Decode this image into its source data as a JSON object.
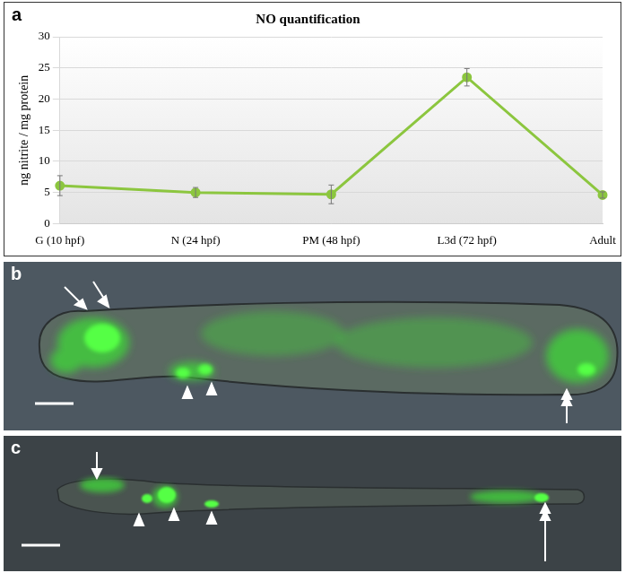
{
  "chart_data": {
    "type": "line",
    "title": "NO quantification",
    "categories": [
      "G (10 hpf)",
      "N (24 hpf)",
      "PM (48 hpf)",
      "L3d (72 hpf)",
      "Adult"
    ],
    "values": [
      6.1,
      5.0,
      4.7,
      23.5,
      4.6
    ],
    "errors": [
      1.6,
      0.8,
      1.5,
      1.4,
      0.5
    ],
    "y_label": "ng nitrite / mg protein",
    "color": "#8cc63f",
    "marker": "circle",
    "ylim": [
      0,
      30
    ],
    "yticks": [
      0,
      5,
      10,
      15,
      20,
      25,
      30
    ],
    "grid": true
  },
  "panel_labels": [
    "a",
    "b",
    "c"
  ]
}
